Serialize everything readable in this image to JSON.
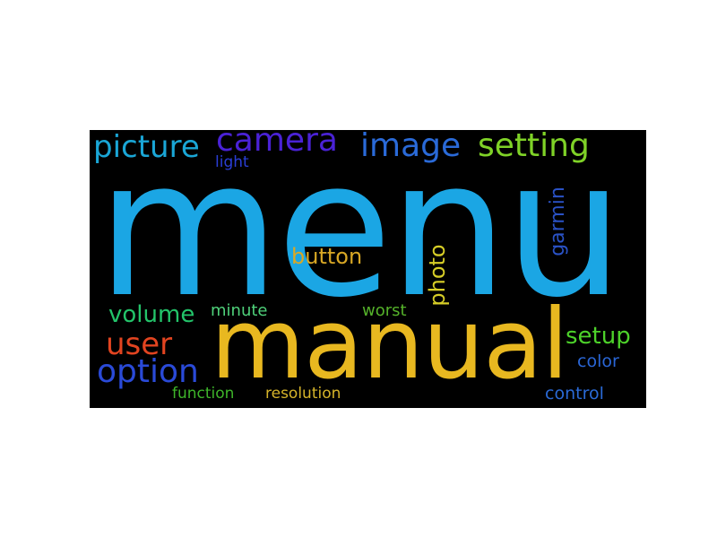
{
  "word_cloud": {
    "background": "#000000",
    "words": [
      {
        "id": "menu",
        "text": "menu",
        "color": "#1ba6e4"
      },
      {
        "id": "manual",
        "text": "manual",
        "color": "#e8b820"
      },
      {
        "id": "picture",
        "text": "picture",
        "color": "#1aa6d6"
      },
      {
        "id": "camera",
        "text": "camera",
        "color": "#4a22d6"
      },
      {
        "id": "image",
        "text": "image",
        "color": "#2a6ad8"
      },
      {
        "id": "setting",
        "text": "setting",
        "color": "#7fd227"
      },
      {
        "id": "light",
        "text": "light",
        "color": "#2a3ed6"
      },
      {
        "id": "garmin",
        "text": "garmin",
        "color": "#2a52c6"
      },
      {
        "id": "button",
        "text": "button",
        "color": "#d9a825"
      },
      {
        "id": "photo",
        "text": "photo",
        "color": "#d6cd27"
      },
      {
        "id": "volume",
        "text": "volume",
        "color": "#23c46a"
      },
      {
        "id": "minute",
        "text": "minute",
        "color": "#4fd17a"
      },
      {
        "id": "worst",
        "text": "worst",
        "color": "#55b22a"
      },
      {
        "id": "user",
        "text": "user",
        "color": "#e24420"
      },
      {
        "id": "setup",
        "text": "setup",
        "color": "#4dd22a"
      },
      {
        "id": "option",
        "text": "option",
        "color": "#2a4ad8"
      },
      {
        "id": "color",
        "text": "color",
        "color": "#2a66d6"
      },
      {
        "id": "function",
        "text": "function",
        "color": "#3eb52a"
      },
      {
        "id": "resolution",
        "text": "resolution",
        "color": "#d6b42a"
      },
      {
        "id": "control",
        "text": "control",
        "color": "#2a6ad6"
      }
    ]
  }
}
